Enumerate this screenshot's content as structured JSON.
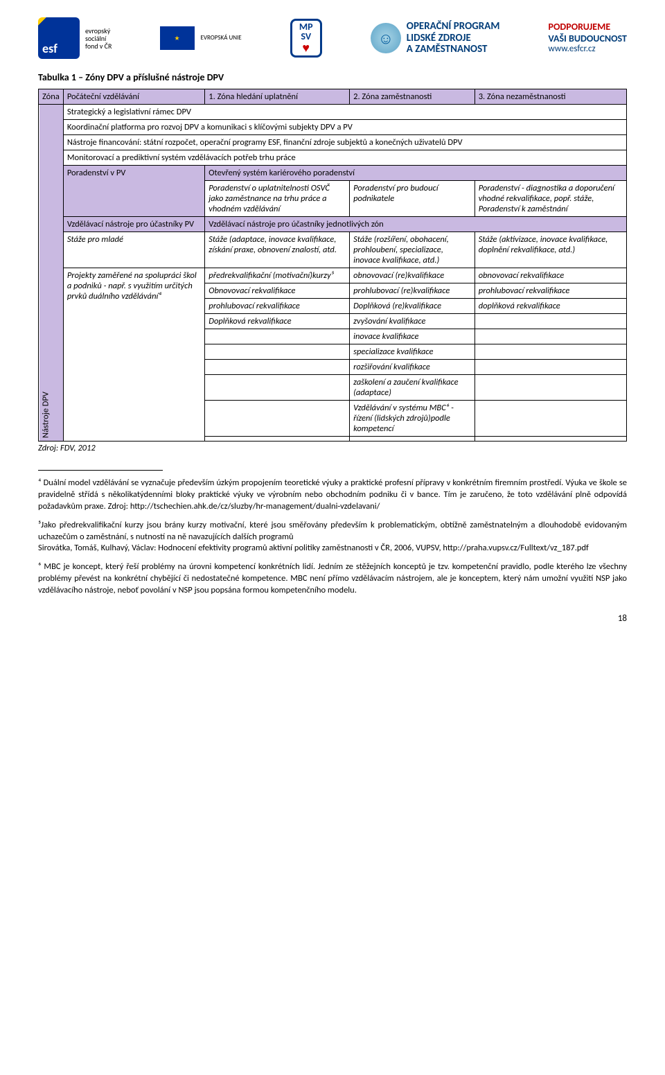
{
  "header": {
    "esf_lines": [
      "evropský",
      "sociální",
      "fond v ČR"
    ],
    "eu_label": "EVROPSKÁ UNIE",
    "mpsv_top": "MP",
    "mpsv_bottom": "SV",
    "op_lines": [
      "OPERAČNÍ PROGRAM",
      "LIDSKÉ ZDROJE",
      "A ZAMĚSTNANOST"
    ],
    "support_line1": "PODPORUJEME",
    "support_line2": "VAŠI BUDOUCNOST",
    "support_url": "www.esfcr.cz"
  },
  "caption": "Tabulka 1 – Zóny DPV a příslušné nástroje DPV",
  "table": {
    "head": [
      "Zóna",
      "Počáteční vzdělávání",
      "1. Zóna hledání uplatnění",
      "2. Zóna zaměstnanosti",
      "3. Zóna nezaměstnanosti"
    ],
    "vertical_label": "Nástroje DPV",
    "section1": [
      "Strategický a legislativní rámec DPV",
      "Koordinační platforma pro rozvoj DPV a komunikaci s klíčovými subjekty DPV a  PV",
      "Nástroje financování: státní rozpočet, operační programy ESF, finanční zdroje subjektů a konečných uživatelů DPV",
      "Monitorovací a prediktivní systém vzdělávacích potřeb trhu práce"
    ],
    "r1c1": "Poradenství v PV",
    "r1c234": "Otevřený systém kariérového poradenství",
    "r2c2": "Poradenství o uplatnitelnosti OSVČ jako zaměstnance na trhu práce a vhodném vzdělávání",
    "r2c3": "Poradenství pro budoucí podnikatele",
    "r2c4": "Poradenství - diagnostika a doporučení vhodné rekvalifikace, popř. stáže, Poradenství k zaměstnání",
    "r3c1": "Vzdělávací nástroje pro účastníky PV",
    "r3c234": "Vzdělávací nástroje pro účastníky jednotlivých zón",
    "r4c1": "Stáže pro mladé",
    "r4c2": "Stáže (adaptace, inovace kvalifikace, získání praxe, obnovení znalostí, atd.",
    "r4c3": "Stáže (rozšíření, obohacení, prohloubení, specializace, inovace kvalifikace, atd.)",
    "r4c4": "Stáže (aktivizace, inovace kvalifikace, doplnění rekvalifikace, atd.)",
    "r5c1": "Projekty zaměřené na spolupráci škol a podniků - např. s využitím určitých prvků duálního vzdělávání⁴",
    "r5c2": "předrekvalifikační (motivační)kurzy⁵",
    "r5c3": "obnovovací (re)kvalifikace",
    "r5c4": "obnovovací rekvalifikace",
    "r6c2": "Obnovovací rekvalifikace",
    "r6c3": "prohlubovací (re)kvalifikace",
    "r6c4": "prohlubovací rekvalifikace",
    "r7c2": "prohlubovací rekvalifikace",
    "r7c3": "Doplňková (re)kvalifikace",
    "r7c4": "doplňková rekvalifikace",
    "r8c2": "Doplňková rekvalifikace",
    "r8c3": "zvyšování kvalifikace",
    "r9c3": "inovace kvalifikace",
    "r10c3": "specializace kvalifikace",
    "r11c3": "rozšiřování kvalifikace",
    "r12c3": "zaškolení a zaučení kvalifikace (adaptace)",
    "r13c3": "Vzdělávání v systému MBC⁶ - řízení (lidských zdrojů)podle kompetencí"
  },
  "source": "Zdroj: FDV, 2012",
  "footnotes": {
    "f4": "⁴ Duální model vzdělávání se vyznačuje především úzkým propojením teoretické výuky a praktické profesní přípravy v konkrétním firemním prostředí. Výuka ve škole se pravidelně střídá s několikatýdenními bloky praktické výuky ve výrobním nebo obchodním podniku či v bance. Tím je zaručeno, že toto vzdělávání plně odpovídá požadavkům praxe. Zdroj: http://tschechien.ahk.de/cz/sluzby/hr-management/dualni-vzdelavani/",
    "f5": "⁵Jako předrekvalifikační kurzy jsou brány kurzy motivační, které jsou směřovány především k problematickým, obtížně zaměstnatelným a dlouhodobě evidovaným uchazečům o zaměstnání, s nutností na ně navazujících dalších programů\nSirovátka, Tomáš, Kulhavý, Václav: Hodnocení efektivity programů aktivní politiky zaměstnanosti v ČR, 2006, VUPSV, http://praha.vupsv.cz/Fulltext/vz_187.pdf",
    "f6": "⁶ MBC je koncept, který řeší problémy na úrovni kompetencí konkrétních lidí. Jedním ze stěžejních konceptů je tzv. kompetenční pravidlo, podle kterého lze všechny problémy převést na konkrétní chybějící či nedostatečné kompetence. MBC není přímo vzdělávacím nástrojem, ale je konceptem, který nám umožní využití NSP jako vzdělávacího nástroje, neboť povolání v NSP jsou popsána formou kompetenčního modelu."
  },
  "page_number": "18"
}
